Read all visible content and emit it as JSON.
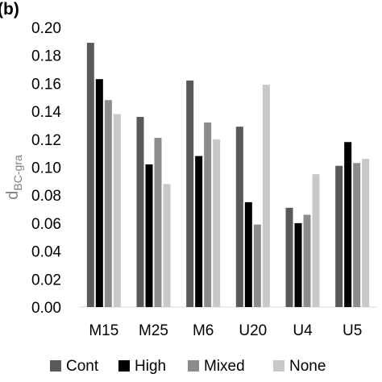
{
  "chart_data": {
    "type": "bar",
    "panel_label": "(b)",
    "ylabel": {
      "main": "d",
      "subscript": "BC-gra"
    },
    "categories": [
      "M15",
      "M25",
      "M6",
      "U20",
      "U4",
      "U5"
    ],
    "ylim": [
      0,
      0.2
    ],
    "yticks": [
      "0.00",
      "0.02",
      "0.04",
      "0.06",
      "0.08",
      "0.10",
      "0.12",
      "0.14",
      "0.16",
      "0.18",
      "0.20"
    ],
    "grid": false,
    "legend_position": "bottom",
    "series": [
      {
        "name": "Cont",
        "color": "#595959",
        "values": [
          0.189,
          0.136,
          0.162,
          0.129,
          0.071,
          0.101
        ]
      },
      {
        "name": "High",
        "color": "#000000",
        "values": [
          0.163,
          0.102,
          0.108,
          0.075,
          0.06,
          0.118
        ]
      },
      {
        "name": "Mixed",
        "color": "#8c8c8c",
        "values": [
          0.148,
          0.121,
          0.132,
          0.059,
          0.066,
          0.103
        ]
      },
      {
        "name": "None",
        "color": "#c8c8c8",
        "values": [
          0.138,
          0.088,
          0.12,
          0.159,
          0.095,
          0.106
        ]
      }
    ]
  }
}
